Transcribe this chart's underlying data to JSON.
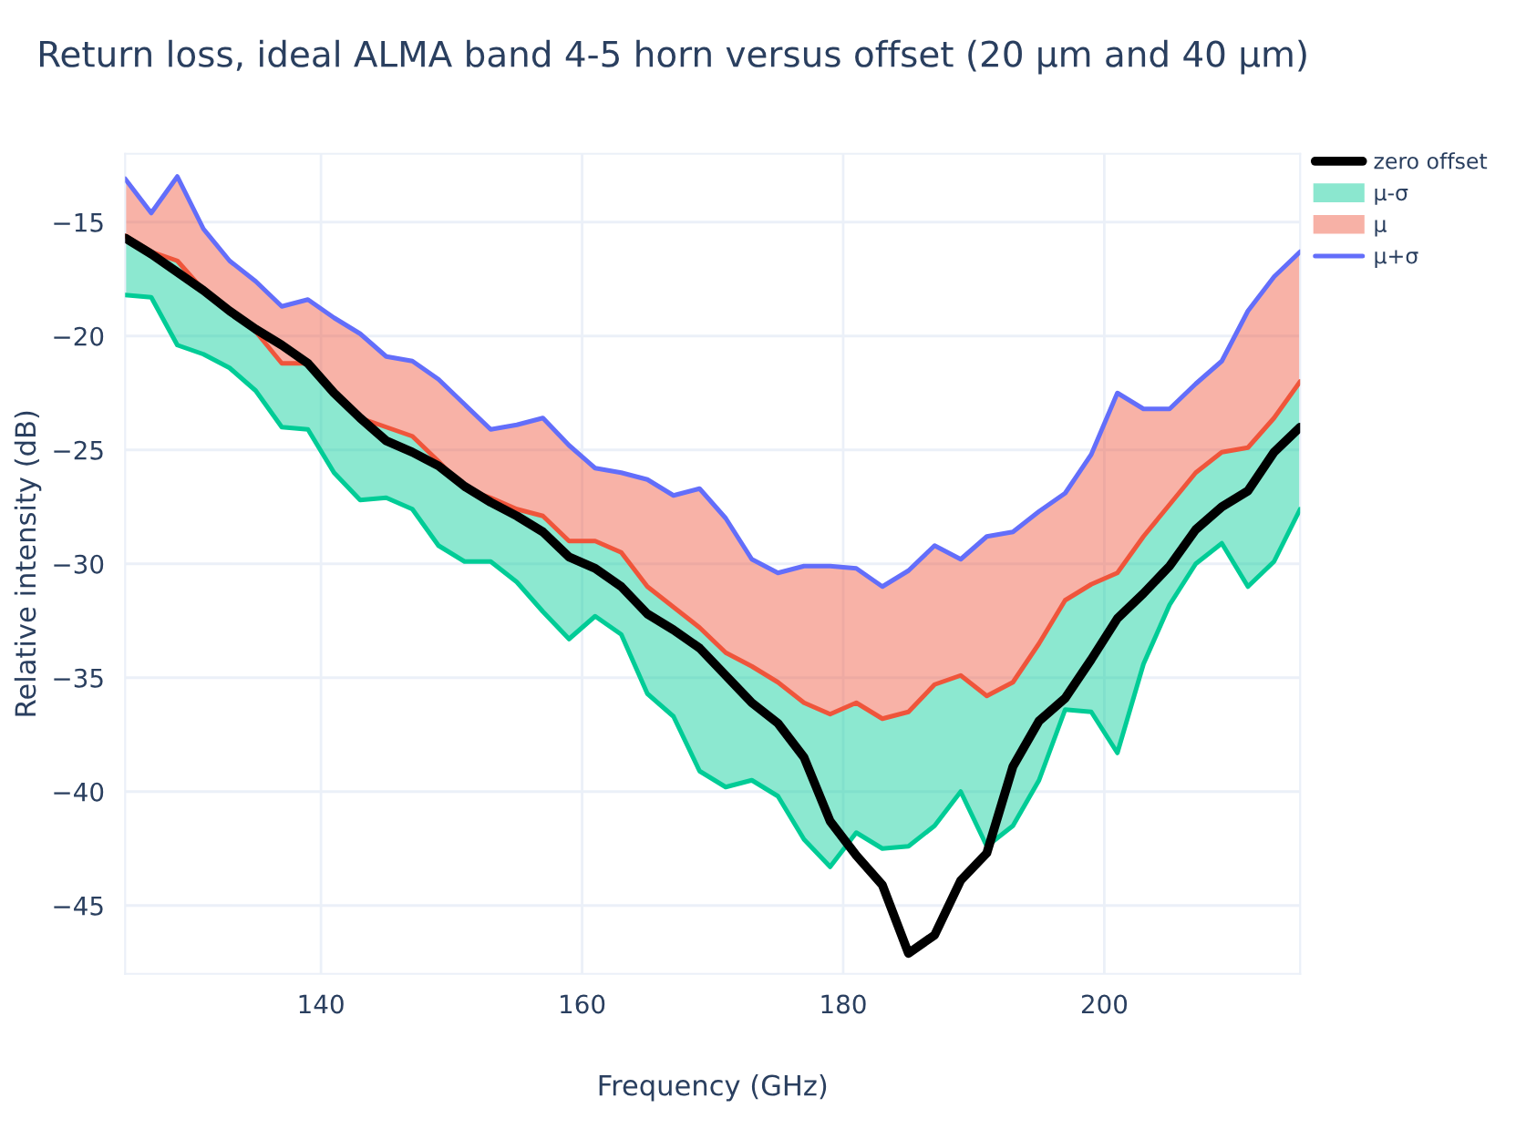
{
  "chart_data": {
    "type": "line",
    "title": "Return loss, ideal ALMA band 4-5 horn versus offset (20 µm and 40 µm)",
    "xlabel": "Frequency (GHz)",
    "ylabel": "Relative intensity (dB)",
    "x": [
      125,
      127,
      129,
      131,
      133,
      135,
      137,
      139,
      141,
      143,
      145,
      147,
      149,
      151,
      153,
      155,
      157,
      159,
      161,
      163,
      165,
      167,
      169,
      171,
      173,
      175,
      177,
      179,
      181,
      183,
      185,
      187,
      189,
      191,
      193,
      195,
      197,
      199,
      201,
      203,
      205,
      207,
      209,
      211,
      213,
      215
    ],
    "series": [
      {
        "name": "zero offset",
        "color": "#000000",
        "values": [
          -15.7,
          -16.4,
          -17.2,
          -18.0,
          -18.9,
          -19.7,
          -20.4,
          -21.2,
          -22.5,
          -23.6,
          -24.6,
          -25.1,
          -25.7,
          -26.6,
          -27.3,
          -27.9,
          -28.6,
          -29.7,
          -30.2,
          -31.0,
          -32.2,
          -32.9,
          -33.7,
          -34.9,
          -36.1,
          -37.0,
          -38.5,
          -41.3,
          -42.8,
          -44.1,
          -47.1,
          -46.3,
          -43.9,
          -42.7,
          -38.9,
          -36.9,
          -35.9,
          -34.2,
          -32.4,
          -31.3,
          -30.1,
          -28.5,
          -27.5,
          -26.8,
          -25.1,
          -24.0
        ]
      },
      {
        "name": "μ-σ",
        "color": "#00cc96",
        "type": "area",
        "values": [
          -18.2,
          -18.3,
          -20.4,
          -20.8,
          -21.4,
          -22.4,
          -24.0,
          -24.1,
          -26.0,
          -27.2,
          -27.1,
          -27.6,
          -29.2,
          -29.9,
          -29.9,
          -30.8,
          -32.1,
          -33.3,
          -32.3,
          -33.1,
          -35.7,
          -36.7,
          -39.1,
          -39.8,
          -39.5,
          -40.2,
          -42.1,
          -43.3,
          -41.8,
          -42.5,
          -42.4,
          -41.5,
          -40.0,
          -42.4,
          -41.5,
          -39.5,
          -36.4,
          -36.5,
          -38.3,
          -34.4,
          -31.8,
          -30.0,
          -29.1,
          -31.0,
          -29.9,
          -27.6
        ]
      },
      {
        "name": "μ",
        "color": "#ef553b",
        "type": "area",
        "values": [
          -15.6,
          -16.3,
          -16.7,
          -18.0,
          -18.9,
          -19.8,
          -21.2,
          -21.2,
          -22.5,
          -23.6,
          -24.0,
          -24.4,
          -25.5,
          -26.7,
          -27.1,
          -27.6,
          -27.9,
          -29.0,
          -29.0,
          -29.5,
          -31.0,
          -31.9,
          -32.8,
          -33.9,
          -34.5,
          -35.2,
          -36.1,
          -36.6,
          -36.1,
          -36.8,
          -36.5,
          -35.3,
          -34.9,
          -35.8,
          -35.2,
          -33.5,
          -31.6,
          -30.9,
          -30.4,
          -28.8,
          -27.4,
          -26.0,
          -25.1,
          -24.9,
          -23.6,
          -22.0
        ]
      },
      {
        "name": "μ+σ",
        "color": "#636efa",
        "values": [
          -13.1,
          -14.6,
          -13.0,
          -15.3,
          -16.7,
          -17.6,
          -18.7,
          -18.4,
          -19.2,
          -19.9,
          -20.9,
          -21.1,
          -21.9,
          -23.0,
          -24.1,
          -23.9,
          -23.6,
          -24.8,
          -25.8,
          -26.0,
          -26.3,
          -27.0,
          -26.7,
          -28.0,
          -29.8,
          -30.4,
          -30.1,
          -30.1,
          -30.2,
          -31.0,
          -30.3,
          -29.2,
          -29.8,
          -28.8,
          -28.6,
          -27.7,
          -26.9,
          -25.2,
          -22.5,
          -23.2,
          -23.2,
          -22.1,
          -21.1,
          -18.9,
          -17.4,
          -16.3
        ]
      }
    ],
    "xlim": [
      125,
      215
    ],
    "xticks": [
      140,
      160,
      180,
      200
    ],
    "ylim": [
      -48,
      -12
    ],
    "yticks": [
      {
        "value": -45,
        "label": "−45"
      },
      {
        "value": -40,
        "label": "−40"
      },
      {
        "value": -35,
        "label": "−35"
      },
      {
        "value": -30,
        "label": "−30"
      },
      {
        "value": -25,
        "label": "−25"
      },
      {
        "value": -20,
        "label": "−20"
      },
      {
        "value": -15,
        "label": "−15"
      }
    ],
    "grid": true,
    "legend": "top right"
  }
}
